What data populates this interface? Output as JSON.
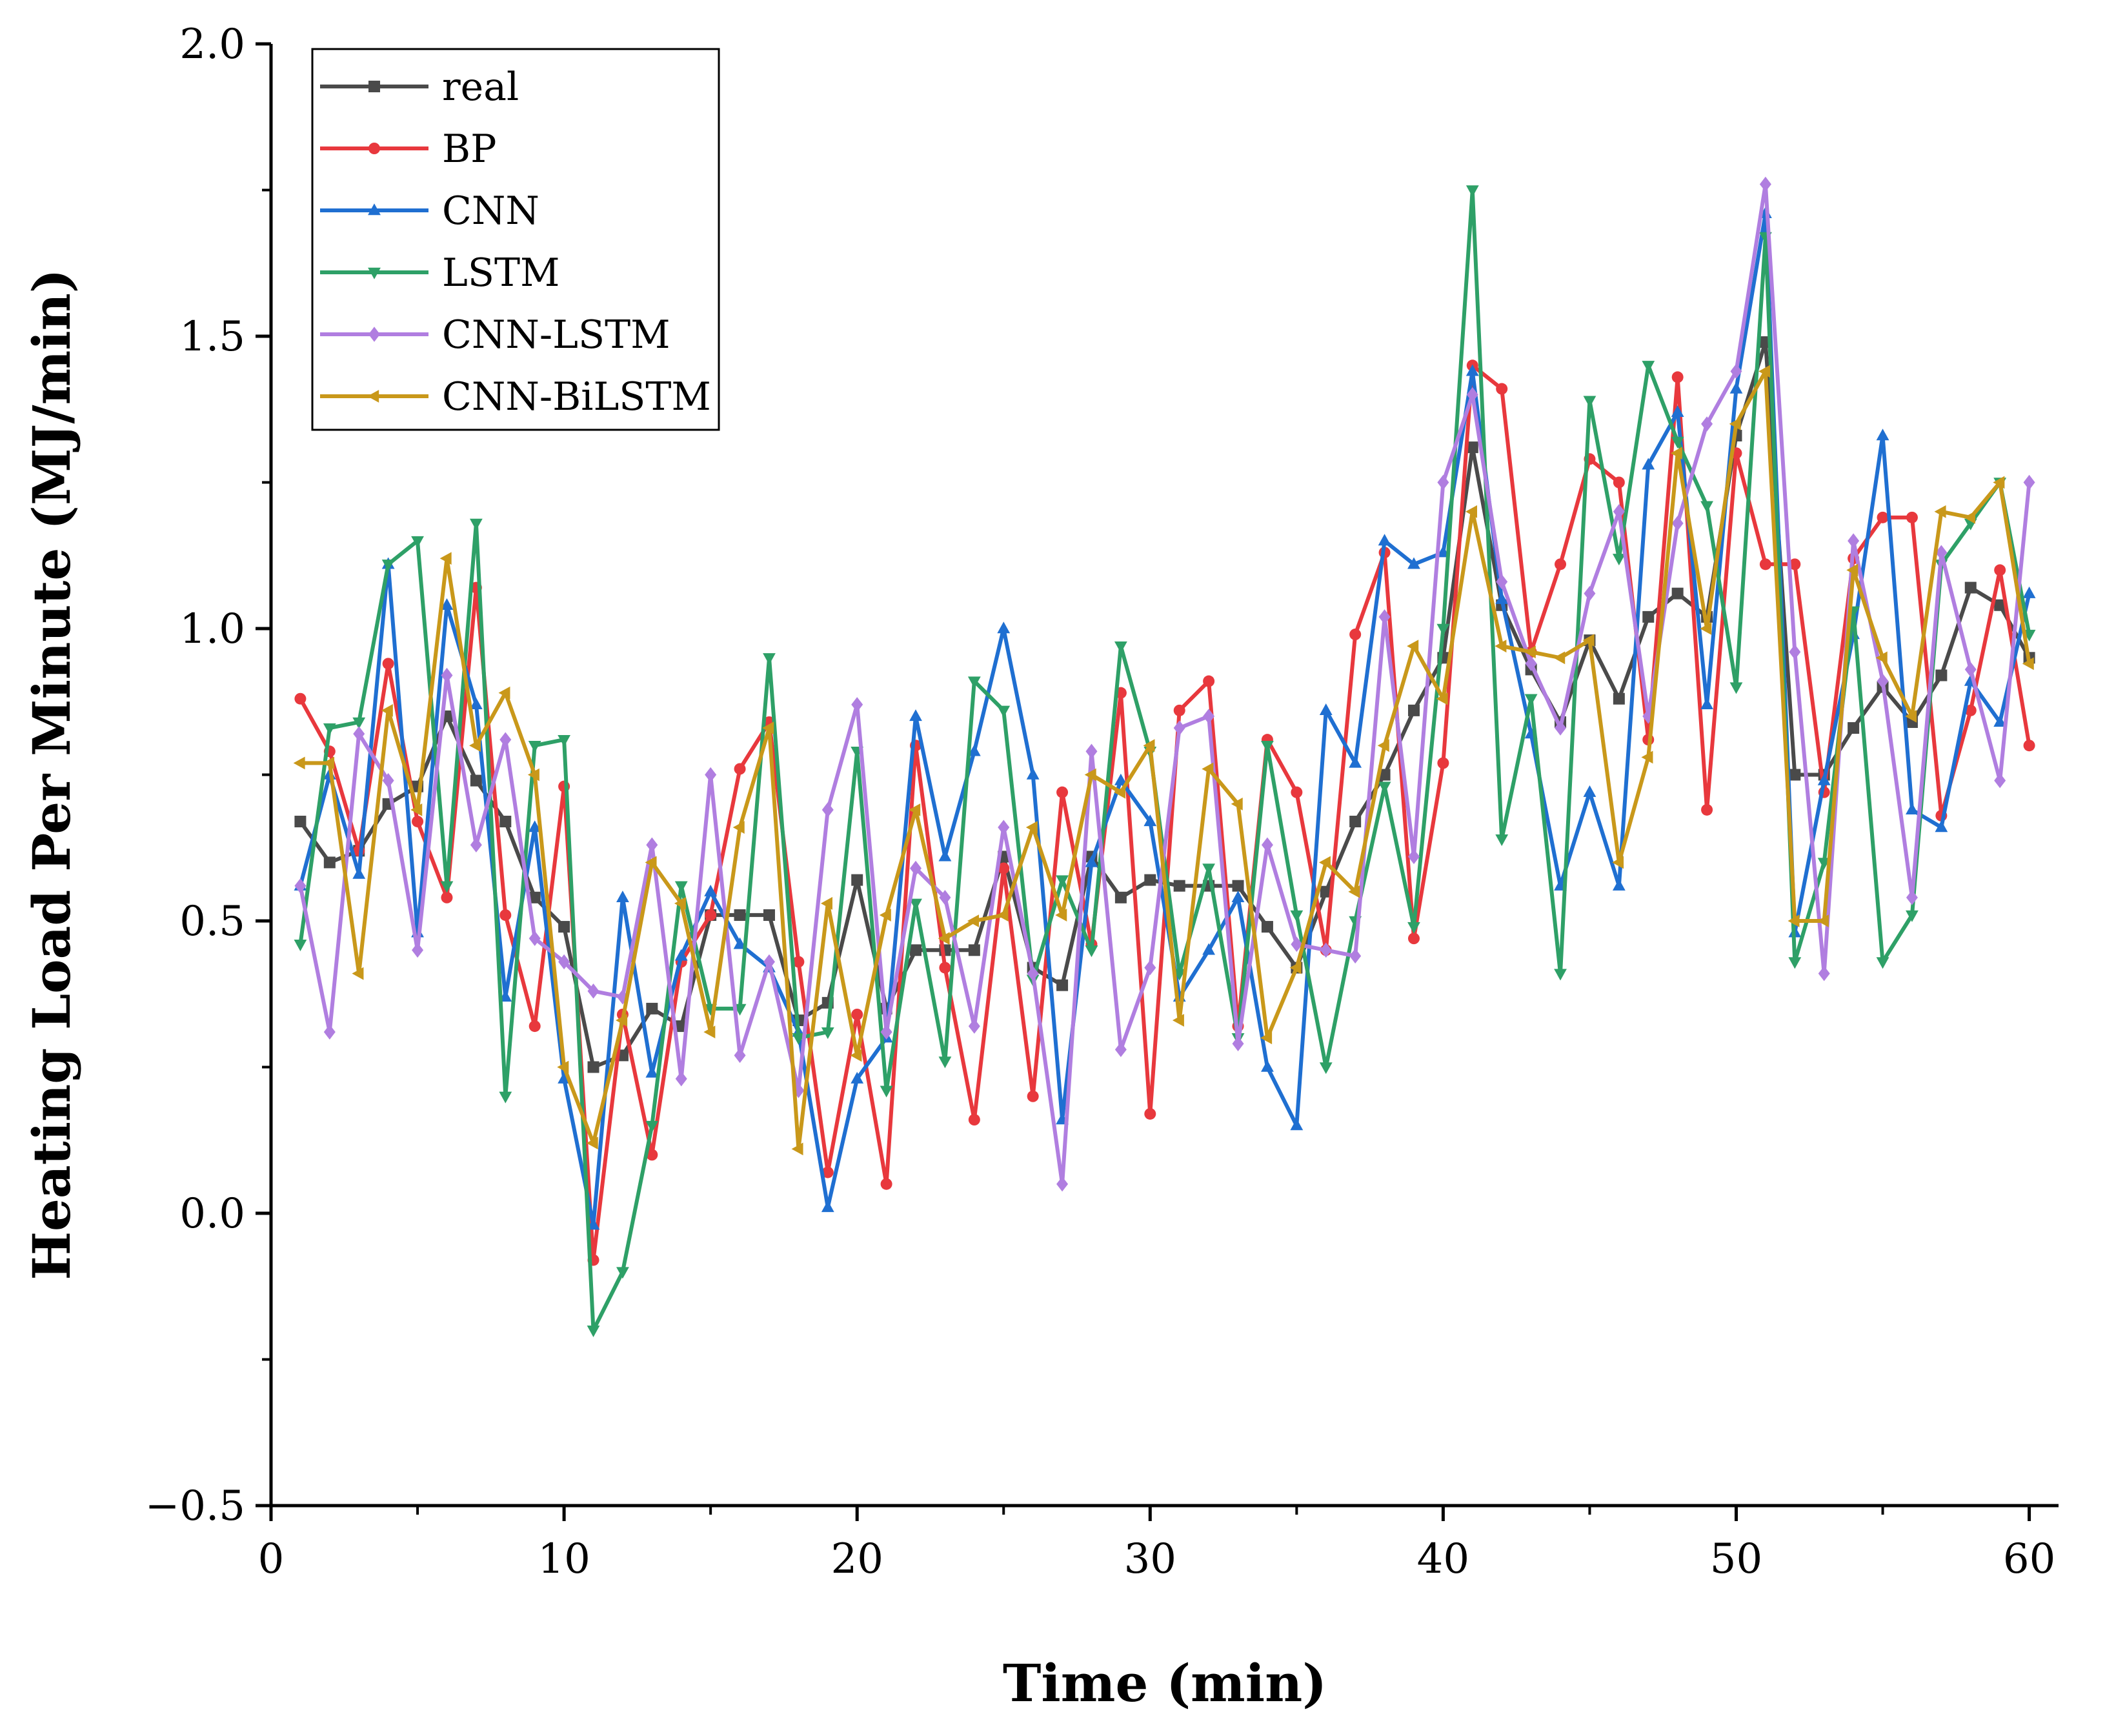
{
  "chart_data": {
    "type": "line",
    "title": "",
    "xlabel": "Time (min)",
    "ylabel": "Heating Load Per Minute (MJ/min)",
    "xlim": [
      0,
      61
    ],
    "ylim": [
      -0.5,
      2.0
    ],
    "xticks": [
      0,
      10,
      20,
      30,
      40,
      50,
      60
    ],
    "xtick_labels": [
      "0",
      "10",
      "20",
      "30",
      "40",
      "50",
      "60"
    ],
    "yticks": [
      -0.5,
      0.0,
      0.5,
      1.0,
      1.5,
      2.0
    ],
    "ytick_labels": [
      "−0.5",
      "0.0",
      "0.5",
      "1.0",
      "1.5",
      "2.0"
    ],
    "grid": false,
    "legend_position": "top-left",
    "x": [
      1,
      2,
      3,
      4,
      5,
      6,
      7,
      8,
      9,
      10,
      11,
      12,
      13,
      14,
      15,
      16,
      17,
      18,
      19,
      20,
      21,
      22,
      23,
      24,
      25,
      26,
      27,
      28,
      29,
      30,
      31,
      32,
      33,
      34,
      35,
      36,
      37,
      38,
      39,
      40,
      41,
      42,
      43,
      44,
      45,
      46,
      47,
      48,
      49,
      50,
      51,
      52,
      53,
      54,
      55,
      56,
      57,
      58,
      59,
      60
    ],
    "series": [
      {
        "name": "real",
        "color": "#4a4a4a",
        "marker": "square",
        "values": [
          0.67,
          0.6,
          0.62,
          0.7,
          0.73,
          0.85,
          0.74,
          0.67,
          0.54,
          0.49,
          0.25,
          0.27,
          0.35,
          0.32,
          0.51,
          0.51,
          0.51,
          0.33,
          0.36,
          0.57,
          0.35,
          0.45,
          0.45,
          0.45,
          0.61,
          0.42,
          0.39,
          0.61,
          0.54,
          0.57,
          0.56,
          0.56,
          0.56,
          0.49,
          0.42,
          0.55,
          0.67,
          0.75,
          0.86,
          0.95,
          1.31,
          1.04,
          0.93,
          0.84,
          0.98,
          0.88,
          1.02,
          1.06,
          1.02,
          1.33,
          1.49,
          0.75,
          0.75,
          0.83,
          0.9,
          0.84,
          0.92,
          1.07,
          1.04,
          0.95
        ]
      },
      {
        "name": "BP",
        "color": "#e8383d",
        "marker": "circle",
        "values": [
          0.88,
          0.79,
          0.62,
          0.94,
          0.67,
          0.54,
          1.07,
          0.51,
          0.32,
          0.73,
          -0.08,
          0.34,
          0.1,
          0.43,
          0.51,
          0.76,
          0.84,
          0.43,
          0.07,
          0.34,
          0.05,
          0.8,
          0.42,
          0.16,
          0.59,
          0.2,
          0.72,
          0.46,
          0.89,
          0.17,
          0.86,
          0.91,
          0.32,
          0.81,
          0.72,
          0.45,
          0.99,
          1.13,
          0.47,
          0.77,
          1.45,
          1.41,
          0.96,
          1.11,
          1.29,
          1.25,
          0.81,
          1.43,
          0.69,
          1.3,
          1.11,
          1.11,
          0.72,
          1.12,
          1.19,
          1.19,
          0.68,
          0.86,
          1.1,
          0.8
        ]
      },
      {
        "name": "CNN",
        "color": "#1f6fd1",
        "marker": "triangle-up",
        "values": [
          0.56,
          0.75,
          0.58,
          1.11,
          0.48,
          1.04,
          0.87,
          0.37,
          0.66,
          0.23,
          -0.02,
          0.54,
          0.24,
          0.44,
          0.55,
          0.46,
          0.42,
          0.31,
          0.01,
          0.23,
          0.3,
          0.85,
          0.61,
          0.79,
          1.0,
          0.75,
          0.16,
          0.6,
          0.74,
          0.67,
          0.37,
          0.45,
          0.54,
          0.25,
          0.15,
          0.86,
          0.77,
          1.15,
          1.11,
          1.13,
          1.44,
          1.05,
          0.82,
          0.56,
          0.72,
          0.56,
          1.28,
          1.37,
          0.87,
          1.41,
          1.71,
          0.48,
          0.74,
          0.99,
          1.33,
          0.69,
          0.66,
          0.91,
          0.84,
          1.06
        ]
      },
      {
        "name": "LSTM",
        "color": "#2ea067",
        "marker": "triangle-down",
        "values": [
          0.46,
          0.83,
          0.84,
          1.11,
          1.15,
          0.56,
          1.18,
          0.2,
          0.8,
          0.81,
          -0.2,
          -0.1,
          0.15,
          0.56,
          0.35,
          0.35,
          0.95,
          0.3,
          0.31,
          0.79,
          0.21,
          0.53,
          0.26,
          0.91,
          0.86,
          0.4,
          0.57,
          0.45,
          0.97,
          0.79,
          0.41,
          0.59,
          0.3,
          0.8,
          0.51,
          0.25,
          0.5,
          0.73,
          0.49,
          1.0,
          1.75,
          0.64,
          0.88,
          0.41,
          1.39,
          1.12,
          1.45,
          1.32,
          1.21,
          0.9,
          1.67,
          0.43,
          0.6,
          1.03,
          0.43,
          0.51,
          1.11,
          1.18,
          1.25,
          0.99
        ]
      },
      {
        "name": "CNN-LSTM",
        "color": "#b07ee0",
        "marker": "diamond",
        "values": [
          0.56,
          0.31,
          0.82,
          0.74,
          0.45,
          0.92,
          0.63,
          0.81,
          0.47,
          0.43,
          0.38,
          0.37,
          0.63,
          0.23,
          0.75,
          0.27,
          0.43,
          0.21,
          0.69,
          0.87,
          0.31,
          0.59,
          0.54,
          0.32,
          0.66,
          0.41,
          0.05,
          0.79,
          0.28,
          0.42,
          0.83,
          0.85,
          0.29,
          0.63,
          0.46,
          0.45,
          0.44,
          1.02,
          0.61,
          1.25,
          1.4,
          1.08,
          0.94,
          0.83,
          1.06,
          1.2,
          0.85,
          1.18,
          1.35,
          1.44,
          1.76,
          0.96,
          0.41,
          1.15,
          0.91,
          0.54,
          1.13,
          0.93,
          0.74,
          1.25
        ]
      },
      {
        "name": "CNN-BiLSTM",
        "color": "#c9981a",
        "marker": "triangle-left",
        "values": [
          0.77,
          0.77,
          0.41,
          0.86,
          0.69,
          1.12,
          0.8,
          0.89,
          0.75,
          0.25,
          0.12,
          0.33,
          0.6,
          0.53,
          0.31,
          0.66,
          0.83,
          0.11,
          0.53,
          0.27,
          0.51,
          0.69,
          0.47,
          0.5,
          0.51,
          0.66,
          0.51,
          0.75,
          0.72,
          0.8,
          0.33,
          0.76,
          0.7,
          0.3,
          0.42,
          0.6,
          0.55,
          0.8,
          0.97,
          0.88,
          1.2,
          0.97,
          0.96,
          0.95,
          0.98,
          0.6,
          0.78,
          1.3,
          1.0,
          1.35,
          1.44,
          0.5,
          0.5,
          1.1,
          0.95,
          0.85,
          1.2,
          1.19,
          1.25,
          0.94
        ]
      }
    ]
  }
}
